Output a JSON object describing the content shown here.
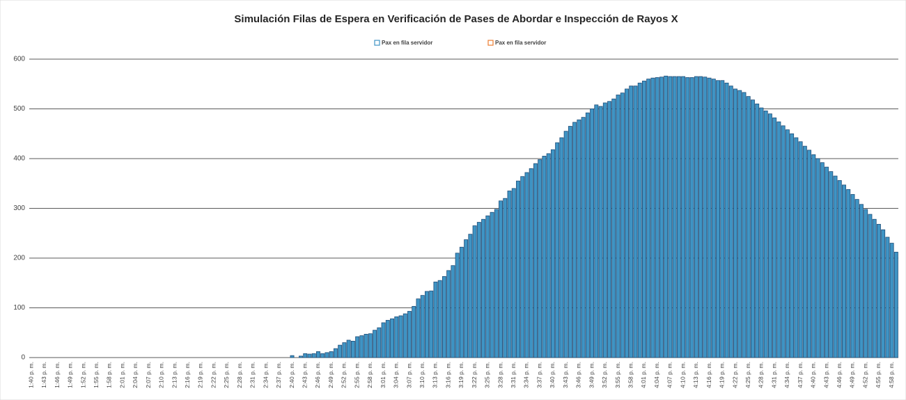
{
  "chart_data": {
    "type": "bar",
    "title": "Simulación Filas de Espera en Verificación de Pases de Abordar e Inspección de Rayos X",
    "categories": [
      "1:40 p. m.",
      null,
      null,
      "1:43 p. m.",
      null,
      null,
      "1:46 p. m.",
      null,
      null,
      "1:49 p. m.",
      null,
      null,
      "1:52 p. m.",
      null,
      null,
      "1:55 p. m.",
      null,
      null,
      "1:58 p. m.",
      null,
      null,
      "2:01 p. m.",
      null,
      null,
      "2:04 p. m.",
      null,
      null,
      "2:07 p. m.",
      null,
      null,
      "2:10 p. m.",
      null,
      null,
      "2:13 p. m.",
      null,
      null,
      "2:16 p. m.",
      null,
      null,
      "2:19 p. m.",
      null,
      null,
      "2:22 p. m.",
      null,
      null,
      "2:25 p. m.",
      null,
      null,
      "2:28 p. m.",
      null,
      null,
      "2:31 p. m.",
      null,
      null,
      "2:34 p. m.",
      null,
      null,
      "2:37 p. m.",
      null,
      null,
      "2:40 p. m.",
      null,
      null,
      "2:43 p. m.",
      null,
      null,
      "2:46 p. m.",
      null,
      null,
      "2:49 p. m.",
      null,
      null,
      "2:52 p. m.",
      null,
      null,
      "2:55 p. m.",
      null,
      null,
      "2:58 p. m.",
      null,
      null,
      "3:01 p. m.",
      null,
      null,
      "3:04 p. m.",
      null,
      null,
      "3:07 p. m.",
      null,
      null,
      "3:10 p. m.",
      null,
      null,
      "3:13 p. m.",
      null,
      null,
      "3:16 p. m.",
      null,
      null,
      "3:19 p. m.",
      null,
      null,
      "3:22 p. m.",
      null,
      null,
      "3:25 p. m.",
      null,
      null,
      "3:28 p. m.",
      null,
      null,
      "3:31 p. m.",
      null,
      null,
      "3:34 p. m.",
      null,
      null,
      "3:37 p. m.",
      null,
      null,
      "3:40 p. m.",
      null,
      null,
      "3:43 p. m.",
      null,
      null,
      "3:46 p. m.",
      null,
      null,
      "3:49 p. m.",
      null,
      null,
      "3:52 p. m.",
      null,
      null,
      "3:55 p. m.",
      null,
      null,
      "3:58 p. m.",
      null,
      null,
      "4:01 p. m.",
      null,
      null,
      "4:04 p. m.",
      null,
      null,
      "4:07 p. m.",
      null,
      null,
      "4:10 p. m.",
      null,
      null,
      "4:13 p. m.",
      null,
      null,
      "4:16 p. m.",
      null,
      null,
      "4:19 p. m.",
      null,
      null,
      "4:22 p. m.",
      null,
      null,
      "4:25 p. m.",
      null,
      null,
      "4:28 p. m.",
      null,
      null,
      "4:31 p. m.",
      null,
      null,
      "4:34 p. m.",
      null,
      null,
      "4:37 p. m.",
      null,
      null,
      "4:40 p. m.",
      null,
      null,
      "4:43 p. m.",
      null,
      null,
      "4:46 p. m.",
      null,
      null,
      "4:49 p. m.",
      null,
      null,
      "4:52 p. m.",
      null,
      null,
      "4:55 p. m.",
      null,
      null,
      "4:58 p. m.",
      null
    ],
    "series": [
      {
        "name": "Pax en fila servidor",
        "color": "#3f94c4",
        "edge": "#1f4e79",
        "values": [
          0,
          0,
          0,
          0,
          0,
          0,
          0,
          0,
          0,
          0,
          0,
          0,
          0,
          0,
          0,
          0,
          0,
          0,
          0,
          0,
          0,
          0,
          0,
          0,
          0,
          0,
          0,
          0,
          0,
          0,
          0,
          0,
          0,
          0,
          0,
          0,
          0,
          0,
          0,
          0,
          0,
          0,
          0,
          0,
          0,
          0,
          0,
          0,
          0,
          0,
          0,
          0,
          0,
          0,
          0,
          0,
          0,
          0,
          0,
          0,
          4,
          0,
          3,
          8,
          7,
          8,
          12,
          8,
          10,
          12,
          18,
          25,
          30,
          35,
          33,
          42,
          44,
          47,
          48,
          55,
          60,
          70,
          75,
          78,
          82,
          84,
          88,
          93,
          103,
          118,
          125,
          133,
          134,
          152,
          155,
          163,
          175,
          185,
          210,
          222,
          237,
          248,
          265,
          272,
          278,
          285,
          292,
          298,
          315,
          320,
          335,
          340,
          355,
          364,
          372,
          380,
          390,
          398,
          405,
          410,
          418,
          432,
          442,
          455,
          465,
          473,
          478,
          483,
          492,
          500,
          508,
          505,
          512,
          515,
          520,
          528,
          532,
          540,
          546,
          546,
          552,
          556,
          560,
          562,
          563,
          564,
          566,
          565,
          565,
          565,
          565,
          563,
          563,
          565,
          565,
          564,
          562,
          560,
          557,
          557,
          552,
          546,
          540,
          537,
          533,
          525,
          518,
          510,
          502,
          496,
          490,
          482,
          474,
          466,
          458,
          450,
          442,
          434,
          425,
          417,
          408,
          400,
          392,
          383,
          374,
          365,
          356,
          347,
          338,
          328,
          318,
          308,
          298,
          288,
          278,
          268,
          257,
          242,
          230,
          212
        ]
      },
      {
        "name": "Pax en fila servidor",
        "color": "#ed7d31",
        "edge": "#ed7d31",
        "values": [
          null,
          null,
          null,
          null,
          null,
          null,
          null,
          null,
          null,
          null,
          null,
          null,
          null,
          null,
          null,
          null,
          null,
          null,
          null,
          null,
          null,
          null,
          null,
          null,
          null,
          null,
          null,
          null,
          null,
          null,
          null,
          null,
          null,
          null,
          null,
          null,
          null,
          null,
          null,
          null,
          null,
          null,
          null,
          null,
          null,
          null,
          null,
          null,
          null,
          null,
          null,
          null,
          null,
          null,
          null,
          null,
          null,
          null,
          null,
          null,
          null,
          null,
          null,
          null,
          null,
          null,
          null,
          null,
          null,
          null,
          null,
          null,
          null,
          null,
          null,
          null,
          null,
          null,
          null,
          null,
          null,
          null,
          null,
          null,
          null,
          null,
          null,
          null,
          null,
          null,
          null,
          null,
          null,
          null,
          null,
          null,
          null,
          null,
          null,
          null,
          null,
          null,
          null,
          null,
          null,
          null,
          null,
          null,
          null,
          null,
          null,
          null,
          null,
          null,
          null,
          null,
          null,
          null,
          null,
          null,
          null,
          null,
          null,
          null,
          null,
          null,
          null,
          null,
          null,
          null,
          null,
          null,
          null,
          null,
          null,
          null,
          null,
          null,
          null,
          null,
          null,
          null,
          null,
          null,
          null,
          null,
          null,
          null,
          null,
          null,
          null,
          null,
          null,
          null,
          null,
          null,
          null,
          null,
          null,
          null,
          null,
          null,
          null,
          null,
          null,
          null,
          null,
          null,
          null,
          null,
          null,
          null,
          null,
          null,
          null,
          null,
          null,
          null,
          null,
          null,
          null,
          null,
          null,
          null,
          null,
          null,
          null,
          null,
          null,
          null,
          null,
          null,
          null,
          null,
          null,
          null,
          null,
          null,
          null,
          null
        ]
      }
    ],
    "ylim": [
      0,
      600
    ],
    "yticks": [
      0,
      100,
      200,
      300,
      400,
      500,
      600
    ],
    "grid": true,
    "legend": "top"
  }
}
